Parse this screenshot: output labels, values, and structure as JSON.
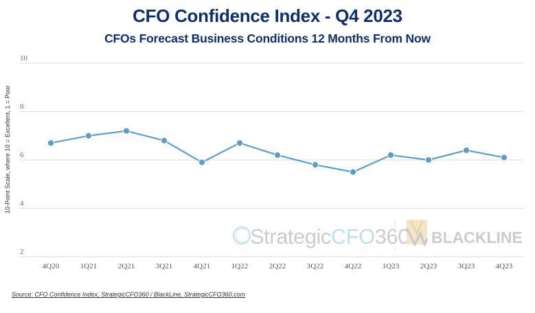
{
  "header": {
    "title": "CFO Confidence Index - Q4 2023",
    "subtitle": "CFOs Forecast Business Conditions 12 Months From Now"
  },
  "logos": {
    "left": {
      "prefix": "Strategic",
      "accent": "CFO",
      "suffix": "360"
    },
    "right": "BLACKLINE"
  },
  "footer": {
    "source": "Source: CFO Confidence Index, StrategicCFO360 / BlackLine, StrategicCFO360.com"
  },
  "colors": {
    "title": "#0d2f6e",
    "line": "#5a9fcc",
    "grid": "#dddddd"
  },
  "chart_data": {
    "type": "line",
    "title": "CFO Confidence Index - Q4 2023",
    "subtitle": "CFOs Forecast Business Conditions 12 Months From Now",
    "xlabel": "",
    "ylabel": "10-Point Scale, where 10 = Excellent, 1 = Poor",
    "categories": [
      "4Q20",
      "1Q21",
      "2Q21",
      "3Q21",
      "4Q21",
      "1Q22",
      "2Q22",
      "3Q22",
      "4Q22",
      "1Q23",
      "2Q23",
      "3Q23",
      "4Q23"
    ],
    "series": [
      {
        "name": "CFO Confidence Index",
        "values": [
          6.7,
          7.0,
          7.2,
          6.8,
          5.9,
          6.7,
          6.2,
          5.8,
          5.5,
          6.2,
          6.0,
          6.4,
          6.1
        ]
      }
    ],
    "ylim": [
      2,
      10
    ],
    "yticks": [
      2,
      4,
      6,
      8,
      10
    ],
    "grid": true,
    "legend": "none"
  }
}
